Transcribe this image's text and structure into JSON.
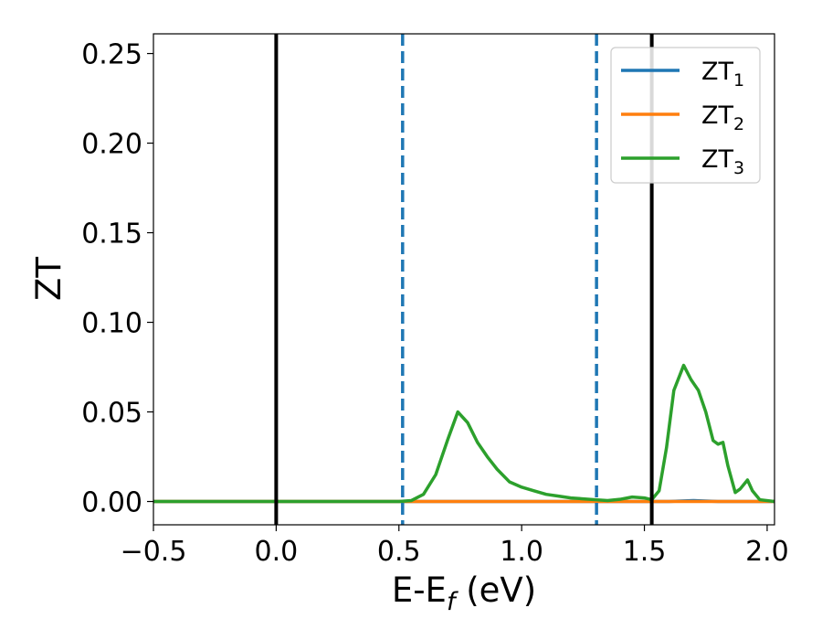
{
  "chart_data": {
    "type": "line",
    "title": "",
    "xlabel": "E-E",
    "xlabel_sub": "f",
    "xlabel_unit": " (eV)",
    "ylabel": "ZT",
    "xlim": [
      -0.5,
      2.03
    ],
    "ylim": [
      -0.013,
      0.261
    ],
    "x_ticks": [
      -0.5,
      0.0,
      0.5,
      1.0,
      1.5,
      2.0
    ],
    "x_tick_labels": [
      "−0.5",
      "0.0",
      "0.5",
      "1.0",
      "1.5",
      "2.0"
    ],
    "y_ticks": [
      0.0,
      0.05,
      0.1,
      0.15,
      0.2,
      0.25
    ],
    "y_tick_labels": [
      "0.00",
      "0.05",
      "0.10",
      "0.15",
      "0.20",
      "0.25"
    ],
    "grid": false,
    "legend_position": "top-right",
    "series": [
      {
        "name": "ZT",
        "name_sub": "1",
        "color": "#1f77b4",
        "points": [
          [
            -0.5,
            0
          ],
          [
            0.0,
            0
          ],
          [
            0.5,
            0
          ],
          [
            1.0,
            0
          ],
          [
            1.5,
            0
          ],
          [
            1.6,
            0
          ],
          [
            1.7,
            0.0005
          ],
          [
            1.8,
            0
          ],
          [
            1.9,
            0
          ],
          [
            2.03,
            0
          ]
        ]
      },
      {
        "name": "ZT",
        "name_sub": "2",
        "color": "#ff7f0e",
        "points": [
          [
            -0.5,
            0
          ],
          [
            0.5,
            0
          ],
          [
            2.03,
            0
          ]
        ]
      },
      {
        "name": "ZT",
        "name_sub": "3",
        "color": "#2ca02c",
        "points": [
          [
            -0.5,
            0
          ],
          [
            0.0,
            0
          ],
          [
            0.5,
            0
          ],
          [
            0.55,
            0.0005
          ],
          [
            0.6,
            0.004
          ],
          [
            0.65,
            0.015
          ],
          [
            0.7,
            0.035
          ],
          [
            0.74,
            0.05
          ],
          [
            0.78,
            0.044
          ],
          [
            0.82,
            0.033
          ],
          [
            0.86,
            0.025
          ],
          [
            0.9,
            0.018
          ],
          [
            0.95,
            0.011
          ],
          [
            1.0,
            0.008
          ],
          [
            1.05,
            0.006
          ],
          [
            1.1,
            0.004
          ],
          [
            1.15,
            0.003
          ],
          [
            1.2,
            0.002
          ],
          [
            1.25,
            0.0015
          ],
          [
            1.3,
            0.001
          ],
          [
            1.35,
            0.0005
          ],
          [
            1.4,
            0.0012
          ],
          [
            1.45,
            0.0025
          ],
          [
            1.5,
            0.002
          ],
          [
            1.53,
            0.001
          ],
          [
            1.56,
            0.006
          ],
          [
            1.59,
            0.03
          ],
          [
            1.62,
            0.062
          ],
          [
            1.66,
            0.076
          ],
          [
            1.69,
            0.068
          ],
          [
            1.72,
            0.062
          ],
          [
            1.75,
            0.05
          ],
          [
            1.78,
            0.034
          ],
          [
            1.8,
            0.032
          ],
          [
            1.82,
            0.033
          ],
          [
            1.84,
            0.02
          ],
          [
            1.87,
            0.005
          ],
          [
            1.89,
            0.007
          ],
          [
            1.92,
            0.012
          ],
          [
            1.94,
            0.006
          ],
          [
            1.97,
            0.001
          ],
          [
            2.03,
            0
          ]
        ]
      }
    ],
    "vlines": [
      {
        "x": 0.0,
        "style": "solid",
        "color": "#000000"
      },
      {
        "x": 1.53,
        "style": "solid",
        "color": "#000000"
      },
      {
        "x": 0.515,
        "style": "dashed",
        "color": "#1f77b4"
      },
      {
        "x": 1.305,
        "style": "dashed",
        "color": "#1f77b4"
      }
    ]
  }
}
